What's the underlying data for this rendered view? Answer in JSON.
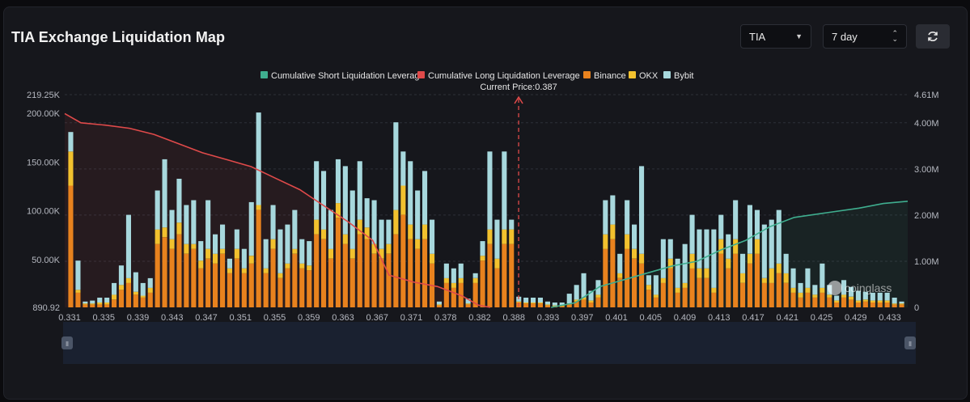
{
  "header": {
    "title": "TIA Exchange Liquidation Map",
    "symbol_select": "TIA",
    "period_select": "7 day"
  },
  "colors": {
    "short_line": "#3fae8f",
    "long_line": "#e04a4a",
    "binance": "#e8821e",
    "okx": "#f2c12e",
    "bybit": "#a7d8dd",
    "current_price_line": "#e04a4a"
  },
  "chart_data": {
    "type": "bar",
    "title": "TIA Exchange Liquidation Map",
    "current_price_label": "Current Price:0.387",
    "current_price": 0.387,
    "legend": [
      {
        "name": "Cumulative Short Liquidation Leverage",
        "color": "#3fae8f",
        "kind": "line"
      },
      {
        "name": "Cumulative Long Liquidation Leverage",
        "color": "#e04a4a",
        "kind": "line"
      },
      {
        "name": "Binance",
        "color": "#e8821e",
        "kind": "bar"
      },
      {
        "name": "OKX",
        "color": "#f2c12e",
        "kind": "bar"
      },
      {
        "name": "Bybit",
        "color": "#a7d8dd",
        "kind": "bar"
      }
    ],
    "legend_position": "top-center",
    "x_tick_labels": [
      "0.331",
      "0.335",
      "0.339",
      "0.343",
      "0.347",
      "0.351",
      "0.355",
      "0.359",
      "0.363",
      "0.367",
      "0.371",
      "0.378",
      "0.382",
      "0.388",
      "0.393",
      "0.397",
      "0.401",
      "0.405",
      "0.409",
      "0.413",
      "0.417",
      "0.421",
      "0.425",
      "0.429",
      "0.433"
    ],
    "left_axis": {
      "tick_labels": [
        "890.92",
        "50.00K",
        "100.00K",
        "150.00K",
        "200.00K",
        "219.25K"
      ],
      "tick_values": [
        890.92,
        50000,
        100000,
        150000,
        200000,
        219250
      ],
      "range": [
        890.92,
        219250
      ]
    },
    "right_axis": {
      "tick_labels": [
        "0",
        "1.00M",
        "2.00M",
        "3.00M",
        "4.00M",
        "4.61M"
      ],
      "tick_values": [
        0,
        1000000,
        2000000,
        3000000,
        4000000,
        4610000
      ],
      "range": [
        0,
        4610000
      ]
    },
    "x_range": [
      0.331,
      0.435
    ],
    "series": [
      {
        "name": "Binance",
        "values": [
          125000,
          15000,
          3000,
          3000,
          3000,
          3000,
          8000,
          18000,
          25000,
          13000,
          10000,
          15000,
          65000,
          72000,
          60000,
          75000,
          55000,
          60000,
          40000,
          50000,
          45000,
          55000,
          35000,
          50000,
          35000,
          45000,
          100000,
          35000,
          60000,
          30000,
          40000,
          55000,
          40000,
          38000,
          75000,
          70000,
          50000,
          92000,
          65000,
          50000,
          75000,
          70000,
          55000,
          50000,
          55000,
          75000,
          95000,
          70000,
          60000,
          70000,
          45000,
          2000,
          25000,
          20000,
          25000,
          3000,
          25000,
          48000,
          65000,
          40000,
          65000,
          65000,
          5000,
          4000,
          4000,
          4000,
          2000,
          1000,
          1000,
          3000,
          6000,
          8000,
          5000,
          10000,
          60000,
          70000,
          30000,
          60000,
          50000,
          45000,
          18000,
          10000,
          25000,
          40000,
          15000,
          20000,
          40000,
          30000,
          30000,
          15000,
          55000,
          40000,
          55000,
          25000,
          45000,
          55000,
          25000,
          25000,
          35000,
          25000,
          15000,
          10000,
          15000,
          10000,
          15000,
          10000,
          5000,
          10000,
          8000,
          5000,
          6000,
          5000,
          5000,
          5000,
          3000,
          3000
        ]
      },
      {
        "name": "OKX",
        "values": [
          35000,
          3000,
          1000,
          1000,
          2000,
          2000,
          5000,
          5000,
          5000,
          3000,
          2000,
          5000,
          15000,
          10000,
          10000,
          12000,
          10000,
          5000,
          8000,
          10000,
          10000,
          5000,
          5000,
          10000,
          5000,
          8000,
          5000,
          5000,
          10000,
          5000,
          5000,
          5000,
          5000,
          5000,
          15000,
          10000,
          10000,
          15000,
          10000,
          10000,
          15000,
          12000,
          10000,
          10000,
          10000,
          25000,
          30000,
          15000,
          10000,
          15000,
          10000,
          1000,
          5000,
          5000,
          5000,
          1000,
          5000,
          5000,
          15000,
          10000,
          15000,
          15000,
          1000,
          1000,
          1000,
          1000,
          1000,
          1000,
          1000,
          1000,
          2000,
          2000,
          2000,
          3000,
          15000,
          15000,
          5000,
          15000,
          10000,
          10000,
          5000,
          3000,
          5000,
          10000,
          5000,
          5000,
          15000,
          10000,
          10000,
          5000,
          15000,
          10000,
          15000,
          10000,
          10000,
          15000,
          5000,
          15000,
          10000,
          10000,
          5000,
          5000,
          5000,
          3000,
          5000,
          3000,
          2000,
          3000,
          3000,
          2000,
          2000,
          2000,
          2000,
          2000,
          1000,
          1000
        ]
      },
      {
        "name": "Bybit",
        "values": [
          20000,
          30000,
          2000,
          3000,
          5000,
          5000,
          12000,
          20000,
          65000,
          20000,
          13000,
          10000,
          40000,
          70000,
          30000,
          45000,
          40000,
          45000,
          20000,
          50000,
          20000,
          25000,
          10000,
          20000,
          20000,
          55000,
          95000,
          30000,
          35000,
          45000,
          40000,
          40000,
          25000,
          25000,
          60000,
          60000,
          40000,
          45000,
          70000,
          60000,
          60000,
          30000,
          45000,
          30000,
          25000,
          90000,
          35000,
          65000,
          50000,
          55000,
          35000,
          3000,
          15000,
          15000,
          15000,
          5000,
          5000,
          15000,
          80000,
          40000,
          80000,
          10000,
          5000,
          5000,
          5000,
          5000,
          3000,
          3000,
          3000,
          10000,
          15000,
          25000,
          10000,
          15000,
          35000,
          30000,
          20000,
          35000,
          25000,
          90000,
          10000,
          20000,
          40000,
          20000,
          30000,
          40000,
          40000,
          40000,
          40000,
          60000,
          25000,
          25000,
          40000,
          20000,
          50000,
          30000,
          55000,
          50000,
          55000,
          20000,
          20000,
          10000,
          20000,
          10000,
          25000,
          10000,
          5000,
          15000,
          10000,
          10000,
          8000,
          8000,
          8000,
          8000,
          6000,
          2000
        ]
      },
      {
        "name": "Cumulative Long Liquidation Leverage",
        "kind": "line",
        "values": [
          [
            0.331,
            4.2
          ],
          [
            0.333,
            4.0
          ],
          [
            0.336,
            3.95
          ],
          [
            0.339,
            3.88
          ],
          [
            0.342,
            3.75
          ],
          [
            0.345,
            3.55
          ],
          [
            0.348,
            3.35
          ],
          [
            0.351,
            3.2
          ],
          [
            0.354,
            3.05
          ],
          [
            0.357,
            2.8
          ],
          [
            0.36,
            2.55
          ],
          [
            0.363,
            2.2
          ],
          [
            0.366,
            1.85
          ],
          [
            0.369,
            1.45
          ],
          [
            0.371,
            0.7
          ],
          [
            0.374,
            0.55
          ],
          [
            0.377,
            0.45
          ],
          [
            0.38,
            0.25
          ],
          [
            0.382,
            0.05
          ],
          [
            0.3835,
            0
          ]
        ]
      },
      {
        "name": "Cumulative Short Liquidation Leverage",
        "kind": "line",
        "values": [
          [
            0.391,
            0
          ],
          [
            0.394,
            0.1
          ],
          [
            0.397,
            0.45
          ],
          [
            0.4,
            0.6
          ],
          [
            0.403,
            0.75
          ],
          [
            0.406,
            0.9
          ],
          [
            0.409,
            1.0
          ],
          [
            0.412,
            1.25
          ],
          [
            0.415,
            1.45
          ],
          [
            0.418,
            1.75
          ],
          [
            0.421,
            1.95
          ],
          [
            0.425,
            2.05
          ],
          [
            0.429,
            2.15
          ],
          [
            0.432,
            2.25
          ],
          [
            0.435,
            2.3
          ]
        ]
      }
    ]
  }
}
